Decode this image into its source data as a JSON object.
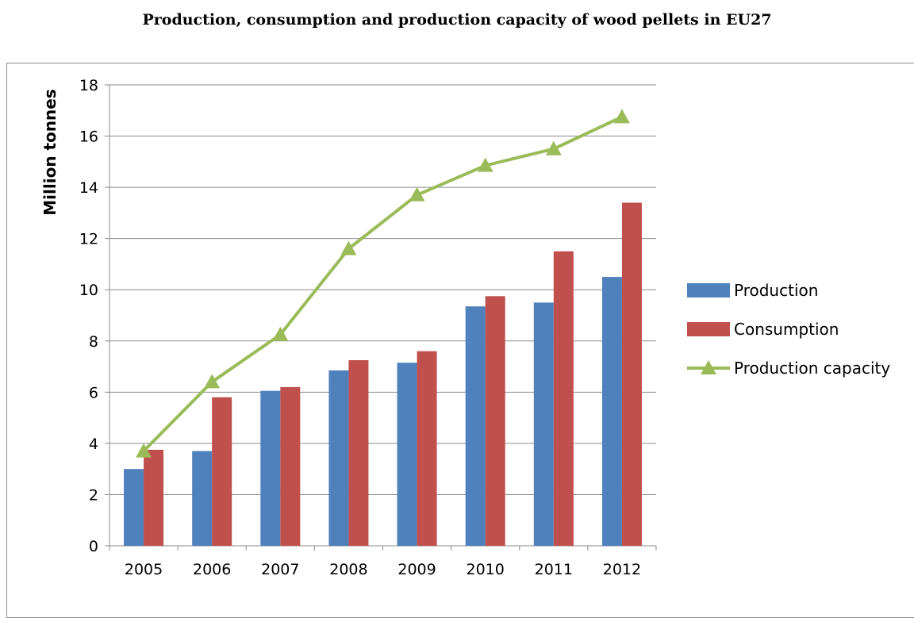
{
  "chart_data": {
    "type": "bar",
    "title": "Production, consumption and production capacity of wood pellets in EU27",
    "ylabel": "Million tonnes",
    "xlabel": "",
    "categories": [
      "2005",
      "2006",
      "2007",
      "2008",
      "2009",
      "2010",
      "2011",
      "2012"
    ],
    "ylim": [
      0,
      18
    ],
    "yticks": [
      0,
      2,
      4,
      6,
      8,
      10,
      12,
      14,
      16,
      18
    ],
    "grid": true,
    "legend_position": "right",
    "series": [
      {
        "name": "Production",
        "type": "bar",
        "color": "#4F81BD",
        "values": [
          3.0,
          3.7,
          6.05,
          6.85,
          7.15,
          9.35,
          9.5,
          10.5
        ]
      },
      {
        "name": "Consumption",
        "type": "bar",
        "color": "#C0504D",
        "values": [
          3.75,
          5.8,
          6.2,
          7.25,
          7.6,
          9.75,
          11.5,
          13.4
        ]
      },
      {
        "name": "Production capacity",
        "type": "line",
        "marker": "triangle",
        "color": "#9BBB59",
        "values": [
          3.7,
          6.4,
          8.25,
          11.6,
          13.7,
          14.85,
          15.5,
          16.75
        ]
      }
    ]
  }
}
